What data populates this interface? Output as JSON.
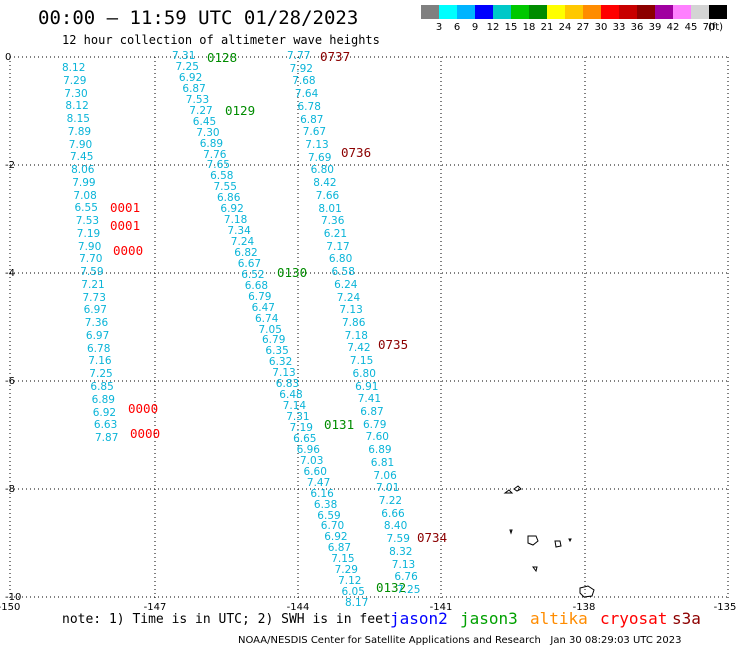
{
  "title": "00:00 – 11:59 UTC 01/28/2023",
  "subtitle": "12 hour collection of altimeter wave heights",
  "colorbar": {
    "colors": [
      "#808080",
      "#00ffff",
      "#00b4ff",
      "#0000ff",
      "#00c8c8",
      "#00c800",
      "#008c00",
      "#ffff00",
      "#ffc800",
      "#ff8c00",
      "#ff0000",
      "#c80000",
      "#8c0000",
      "#a000a0",
      "#ff80ff",
      "#d4d4d4",
      "#000000"
    ],
    "labels": [
      "3",
      "6",
      "9",
      "12",
      "15",
      "18",
      "21",
      "24",
      "27",
      "30",
      "33",
      "36",
      "39",
      "42",
      "45",
      "70"
    ],
    "unit": "(ft)"
  },
  "axes": {
    "lat_labels": [
      "0",
      "-2",
      "-4",
      "-6",
      "-8",
      "-10"
    ],
    "lon_labels": [
      "-150",
      "-147",
      "-144",
      "-141",
      "-138",
      "-135"
    ]
  },
  "note": "note: 1) Time is in UTC; 2) SWH is in feet",
  "satellites": [
    {
      "name": "jason2",
      "color": "#0000ff"
    },
    {
      "name": "jason3",
      "color": "#00a000"
    },
    {
      "name": "altika",
      "color": "#ff8c00"
    },
    {
      "name": "cryosat",
      "color": "#ff0000"
    },
    {
      "name": "s3a",
      "color": "#8c0000"
    }
  ],
  "footer": "NOAA/NESDIS Center for Satellite Applications and Research   Jan 30 08:29:03 UTC 2023",
  "tracks": [
    {
      "name": "west-track",
      "values": [
        "8.12",
        "7.29",
        "7.30",
        "8.12",
        "8.15",
        "7.89",
        "7.90",
        "7.45",
        "8.06",
        "7.99",
        "7.08",
        "6.55",
        "7.53",
        "7.19",
        "7.90",
        "7.70",
        "7.59",
        "7.21",
        "7.73",
        "6.97",
        "7.36",
        "6.97",
        "6.78",
        "7.16",
        "7.25",
        "6.85",
        "6.89",
        "6.92",
        "6.63",
        "7.87"
      ],
      "time_tags": [
        {
          "text": "0001",
          "color": "#ff0000"
        },
        {
          "text": "0001",
          "color": "#ff0000"
        },
        {
          "text": "0000",
          "color": "#ff0000"
        },
        {
          "text": "0000",
          "color": "#ff0000"
        },
        {
          "text": "0000",
          "color": "#ff0000"
        }
      ]
    },
    {
      "name": "middle-track",
      "values": [
        "7.31",
        "7.25",
        "6.92",
        "6.87",
        "7.53",
        "7.27",
        "6.45",
        "7.30",
        "6.89",
        "7.76",
        "7.65",
        "6.58",
        "7.55",
        "6.86",
        "6.92",
        "7.18",
        "7.34",
        "7.24",
        "6.82",
        "6.67",
        "6.52",
        "6.68",
        "6.79",
        "6.47",
        "6.74",
        "7.05",
        "6.79",
        "6.35",
        "6.32",
        "7.13",
        "6.83",
        "6.48",
        "7.14",
        "7.31",
        "7.19",
        "6.65",
        "6.96",
        "7.03",
        "6.60",
        "7.47",
        "6.16",
        "6.38",
        "6.59",
        "6.70",
        "6.92",
        "6.87",
        "7.15",
        "7.29",
        "7.12",
        "6.05",
        "8.17"
      ],
      "time_tags": [
        {
          "text": "0128",
          "color": "#008c00"
        },
        {
          "text": "0129",
          "color": "#008c00"
        },
        {
          "text": "0130",
          "color": "#008c00"
        },
        {
          "text": "0131",
          "color": "#008c00"
        },
        {
          "text": "0132",
          "color": "#008c00"
        }
      ]
    },
    {
      "name": "east-track",
      "values": [
        "7.77",
        "7.92",
        "7.68",
        "7.64",
        "6.78",
        "6.87",
        "7.67",
        "7.13",
        "7.69",
        "6.80",
        "8.42",
        "7.66",
        "8.01",
        "7.36",
        "6.21",
        "7.17",
        "6.80",
        "6.58",
        "6.24",
        "7.24",
        "7.13",
        "7.86",
        "7.18",
        "7.42",
        "7.15",
        "6.80",
        "6.91",
        "7.41",
        "6.87",
        "6.79",
        "7.60",
        "6.89",
        "6.81",
        "7.06",
        "7.01",
        "7.22",
        "6.66",
        "8.40",
        "7.59",
        "8.32",
        "7.13",
        "6.76",
        "7.25"
      ],
      "time_tags": [
        {
          "text": "0737",
          "color": "#8c0000"
        },
        {
          "text": "0736",
          "color": "#8c0000"
        },
        {
          "text": "0735",
          "color": "#8c0000"
        },
        {
          "text": "0734",
          "color": "#8c0000"
        }
      ]
    }
  ]
}
